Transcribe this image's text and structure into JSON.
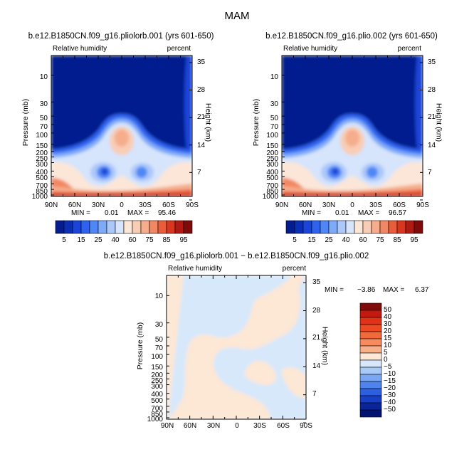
{
  "main_title": "MAM",
  "chart_data": [
    {
      "type": "heatmap",
      "title": "b.e12.B1850CN.f09_g16.pliolorb.001 (yrs 601-650)",
      "variable": "Relative humidity",
      "units": "percent",
      "xlabel": "",
      "ylabel": "Pressure (mb)",
      "ylabel_right": "Height (km)",
      "x_ticks": [
        "90N",
        "60N",
        "30N",
        "0",
        "30S",
        "60S",
        "90S"
      ],
      "y_ticks": [
        "10",
        "30",
        "50",
        "70",
        "100",
        "150",
        "200",
        "250",
        "300",
        "400",
        "500",
        "700",
        "850",
        "1000"
      ],
      "y_ticks_right": [
        "35",
        "28",
        "21",
        "14",
        "7"
      ],
      "min_label": "MIN  =",
      "min_value": "0.01",
      "max_label": "MAX  =",
      "max_value": "95.46",
      "colorbar_labels": [
        "5",
        "15",
        "25",
        "40",
        "60",
        "75",
        "85",
        "95"
      ],
      "colorbar_colors": [
        "#031c8e",
        "#0b2fb4",
        "#1a45d8",
        "#2f63ef",
        "#4f87f6",
        "#7eaaf8",
        "#acc8fa",
        "#d6e4fc",
        "#fbe6d8",
        "#f8cdb5",
        "#f5ad8c",
        "#f18763",
        "#e85d3c",
        "#d8371f",
        "#b01a12",
        "#7f0a0a"
      ]
    },
    {
      "type": "heatmap",
      "title": "b.e12.B1850CN.f09_g16.plio.002 (yrs 601-650)",
      "variable": "Relative humidity",
      "units": "percent",
      "xlabel": "",
      "ylabel": "Pressure (mb)",
      "ylabel_right": "Height (km)",
      "x_ticks": [
        "90N",
        "60N",
        "30N",
        "0",
        "30S",
        "60S",
        "90S"
      ],
      "y_ticks": [
        "10",
        "30",
        "50",
        "70",
        "100",
        "150",
        "200",
        "250",
        "300",
        "400",
        "500",
        "700",
        "850",
        "1000"
      ],
      "y_ticks_right": [
        "35",
        "28",
        "21",
        "14",
        "7"
      ],
      "min_label": "MIN  =",
      "min_value": "0.01",
      "max_label": "MAX  =",
      "max_value": "96.57",
      "colorbar_labels": [
        "5",
        "15",
        "25",
        "40",
        "60",
        "75",
        "85",
        "95"
      ],
      "colorbar_colors": [
        "#031c8e",
        "#0b2fb4",
        "#1a45d8",
        "#2f63ef",
        "#4f87f6",
        "#7eaaf8",
        "#acc8fa",
        "#d6e4fc",
        "#fbe6d8",
        "#f8cdb5",
        "#f5ad8c",
        "#f18763",
        "#e85d3c",
        "#d8371f",
        "#b01a12",
        "#7f0a0a"
      ]
    },
    {
      "type": "heatmap",
      "title": "b.e12.B1850CN.f09_g16.pliolorb.001 − b.e12.B1850CN.f09_g16.plio.002",
      "variable": "Relative humidity",
      "units": "percent",
      "xlabel": "",
      "ylabel": "Pressure (mb)",
      "ylabel_right": "Height (km)",
      "x_ticks": [
        "90N",
        "60N",
        "30N",
        "0",
        "30S",
        "60S",
        "90S"
      ],
      "y_ticks": [
        "10",
        "30",
        "50",
        "70",
        "100",
        "150",
        "200",
        "250",
        "300",
        "400",
        "500",
        "700",
        "850",
        "1000"
      ],
      "y_ticks_right": [
        "35",
        "28",
        "21",
        "14",
        "7"
      ],
      "min_label": "MIN  =",
      "min_value": "−3.86",
      "max_label": "MAX  =",
      "max_value": "6.37",
      "colorbar_labels": [
        "50",
        "40",
        "30",
        "20",
        "15",
        "10",
        "5",
        "0",
        "−5",
        "−10",
        "−15",
        "−20",
        "−30",
        "−40",
        "−50"
      ],
      "colorbar_colors": [
        "#7f0a0a",
        "#c21a0e",
        "#e03216",
        "#ee4a22",
        "#f26a3c",
        "#f58b5e",
        "#f8b08a",
        "#fde7d5",
        "#d7e8fb",
        "#a9c9f7",
        "#7aa7f3",
        "#4f83ee",
        "#2d60e0",
        "#1740c4",
        "#0a2598",
        "#041371"
      ]
    }
  ]
}
